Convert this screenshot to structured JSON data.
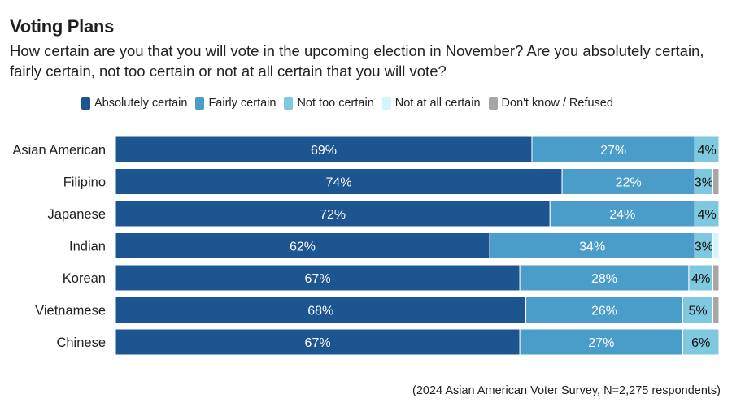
{
  "chart_data": {
    "type": "bar",
    "orientation": "horizontal",
    "stacked": true,
    "title": "Voting Plans",
    "subtitle": "How certain are you that you will vote in the upcoming election in November? Are you absolutely certain, fairly certain, not too certain or not at all certain that you will vote?",
    "source": "(2024 Asian American Voter Survey, N=2,275 respondents)",
    "categories": [
      "Asian American",
      "Filipino",
      "Japanese",
      "Indian",
      "Korean",
      "Vietnamese",
      "Chinese"
    ],
    "series": [
      {
        "name": "Absolutely certain",
        "color": "#1d5590",
        "label_color": "#ffffff",
        "values": [
          69,
          74,
          72,
          62,
          67,
          68,
          67
        ],
        "labels": [
          "69%",
          "74%",
          "72%",
          "62%",
          "67%",
          "68%",
          "67%"
        ]
      },
      {
        "name": "Fairly certain",
        "color": "#4a9cc9",
        "label_color": "#ffffff",
        "values": [
          27,
          22,
          24,
          34,
          28,
          26,
          27
        ],
        "labels": [
          "27%",
          "22%",
          "24%",
          "34%",
          "28%",
          "26%",
          "27%"
        ]
      },
      {
        "name": "Not too certain",
        "color": "#7ec8e0",
        "label_color": "#111111",
        "values": [
          4,
          3,
          4,
          3,
          4,
          5,
          6
        ],
        "labels": [
          "4%",
          "3%",
          "4%",
          "3%",
          "4%",
          "5%",
          "6%"
        ]
      },
      {
        "name": "Not at all certain",
        "color": "#d2f6fb",
        "label_color": "#111111",
        "values": [
          0,
          0,
          0,
          1,
          0,
          0,
          0
        ],
        "labels": [
          "",
          "",
          "",
          "",
          "",
          "",
          ""
        ]
      },
      {
        "name": "Don't know / Refused",
        "color": "#a6a6a6",
        "label_color": "#111111",
        "values": [
          0,
          1,
          0,
          0,
          1,
          1,
          0
        ],
        "labels": [
          "",
          "",
          "",
          "",
          "",
          "",
          ""
        ]
      }
    ],
    "xlim": [
      0,
      100
    ],
    "legend_position": "top",
    "grid": false
  }
}
